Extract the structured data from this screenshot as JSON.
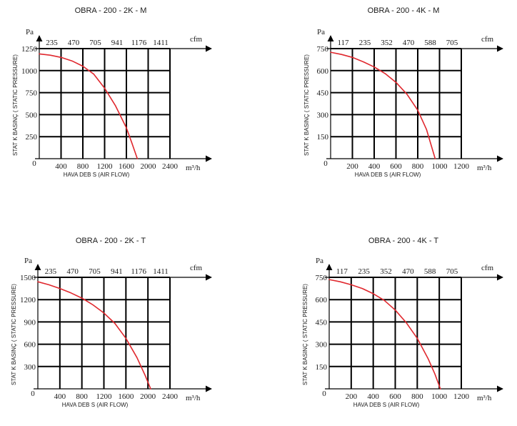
{
  "chart_data": [
    {
      "type": "line",
      "title": "OBRA - 200 - 2K - M",
      "ylabel": "STAT K BASINÇ ( STATIC PRESSURE)",
      "xlabel": "HAVA DEB S  (AIR FLOW)",
      "y_unit": "Pa",
      "x_unit": "m³/h",
      "top_unit": "cfm",
      "xlim": [
        0,
        2400
      ],
      "ylim": [
        0,
        1250
      ],
      "x_ticks": [
        "400",
        "800",
        "1200",
        "1600",
        "2000",
        "2400"
      ],
      "y_ticks": [
        "250",
        "500",
        "750",
        "1000",
        "1250"
      ],
      "top_ticks": [
        "235",
        "470",
        "705",
        "941",
        "1176",
        "1411"
      ],
      "origin_label": "0",
      "line_color": "#e0282e",
      "series": [
        {
          "x": [
            0,
            200,
            400,
            600,
            800,
            1000,
            1200,
            1400,
            1600,
            1700,
            1800
          ],
          "y": [
            1190,
            1175,
            1150,
            1110,
            1050,
            960,
            800,
            600,
            350,
            180,
            0
          ]
        }
      ]
    },
    {
      "type": "line",
      "title": "OBRA - 200 - 4K - M",
      "ylabel": "STAT K BASINÇ ( STATIC PRESSURE)",
      "xlabel": "HAVA DEB S  (AIR FLOW)",
      "y_unit": "Pa",
      "x_unit": "m³/h",
      "top_unit": "cfm",
      "xlim": [
        0,
        1200
      ],
      "ylim": [
        0,
        750
      ],
      "x_ticks": [
        "200",
        "400",
        "600",
        "800",
        "1000",
        "1200"
      ],
      "y_ticks": [
        "150",
        "300",
        "450",
        "600",
        "750"
      ],
      "top_ticks": [
        "117",
        "235",
        "352",
        "470",
        "588",
        "705"
      ],
      "origin_label": "0",
      "line_color": "#e0282e",
      "series": [
        {
          "x": [
            0,
            100,
            200,
            300,
            400,
            500,
            600,
            700,
            800,
            880,
            960
          ],
          "y": [
            725,
            710,
            690,
            660,
            625,
            580,
            520,
            440,
            330,
            200,
            0
          ]
        }
      ]
    },
    {
      "type": "line",
      "title": "OBRA - 200 - 2K - T",
      "ylabel": "STAT K BASINÇ ( STATIC PRESSURE)",
      "xlabel": "HAVA DEB S  (AIR FLOW)",
      "y_unit": "Pa",
      "x_unit": "m³/h",
      "top_unit": "cfm",
      "xlim": [
        0,
        2400
      ],
      "ylim": [
        0,
        1500
      ],
      "x_ticks": [
        "400",
        "800",
        "1200",
        "1600",
        "2000",
        "2400"
      ],
      "y_ticks": [
        "300",
        "600",
        "900",
        "1200",
        "1500"
      ],
      "top_ticks": [
        "235",
        "470",
        "705",
        "941",
        "1176",
        "1411"
      ],
      "origin_label": "0",
      "line_color": "#e0282e",
      "series": [
        {
          "x": [
            0,
            200,
            400,
            600,
            800,
            1000,
            1200,
            1400,
            1600,
            1800,
            1950,
            2050
          ],
          "y": [
            1440,
            1400,
            1350,
            1290,
            1220,
            1130,
            1020,
            880,
            680,
            420,
            180,
            0
          ]
        }
      ]
    },
    {
      "type": "line",
      "title": "OBRA - 200 - 4K - T",
      "ylabel": "STAT K BASINÇ ( STATIC PRESSURE)",
      "xlabel": "HAVA DEB S  (AIR FLOW)",
      "y_unit": "Pa",
      "x_unit": "m³/h",
      "top_unit": "cfm",
      "xlim": [
        0,
        1200
      ],
      "ylim": [
        0,
        750
      ],
      "x_ticks": [
        "200",
        "400",
        "600",
        "800",
        "1000",
        "1200"
      ],
      "y_ticks": [
        "150",
        "300",
        "450",
        "600",
        "750"
      ],
      "top_ticks": [
        "117",
        "235",
        "352",
        "470",
        "588",
        "705"
      ],
      "origin_label": "0",
      "line_color": "#e0282e",
      "series": [
        {
          "x": [
            0,
            100,
            200,
            300,
            400,
            500,
            600,
            700,
            800,
            900,
            960,
            1010
          ],
          "y": [
            735,
            720,
            700,
            675,
            640,
            595,
            530,
            445,
            340,
            200,
            100,
            0
          ]
        }
      ]
    }
  ]
}
